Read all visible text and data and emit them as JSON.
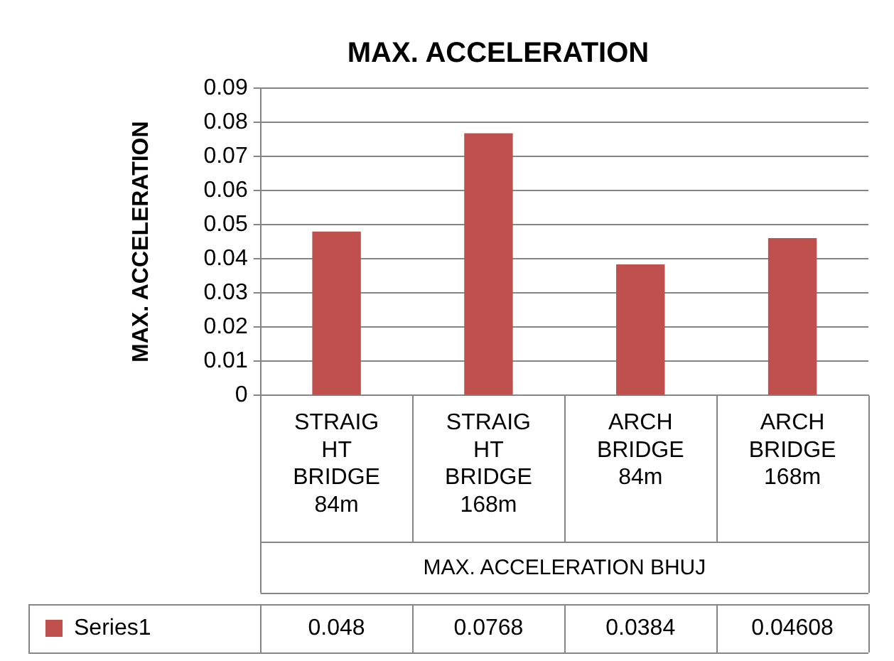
{
  "chart_data": {
    "type": "bar",
    "title": "MAX. ACCELERATION",
    "xlabel": "MAX. ACCELERATION BHUJ",
    "ylabel": "MAX. ACCELERATION",
    "categories": [
      "STRAIGHT BRIDGE 84m",
      "STRAIGHT BRIDGE 168m",
      "ARCH BRIDGE 84m",
      "ARCH BRIDGE 168m"
    ],
    "series": [
      {
        "name": "Series1",
        "color": "#c0504d",
        "values": [
          0.048,
          0.0768,
          0.0384,
          0.04608
        ]
      }
    ],
    "ylim": [
      0,
      0.09
    ],
    "yticks": [
      0,
      0.01,
      0.02,
      0.03,
      0.04,
      0.05,
      0.06,
      0.07,
      0.08,
      0.09
    ],
    "grid": "y",
    "data_labels": true,
    "legend": "bottom"
  }
}
